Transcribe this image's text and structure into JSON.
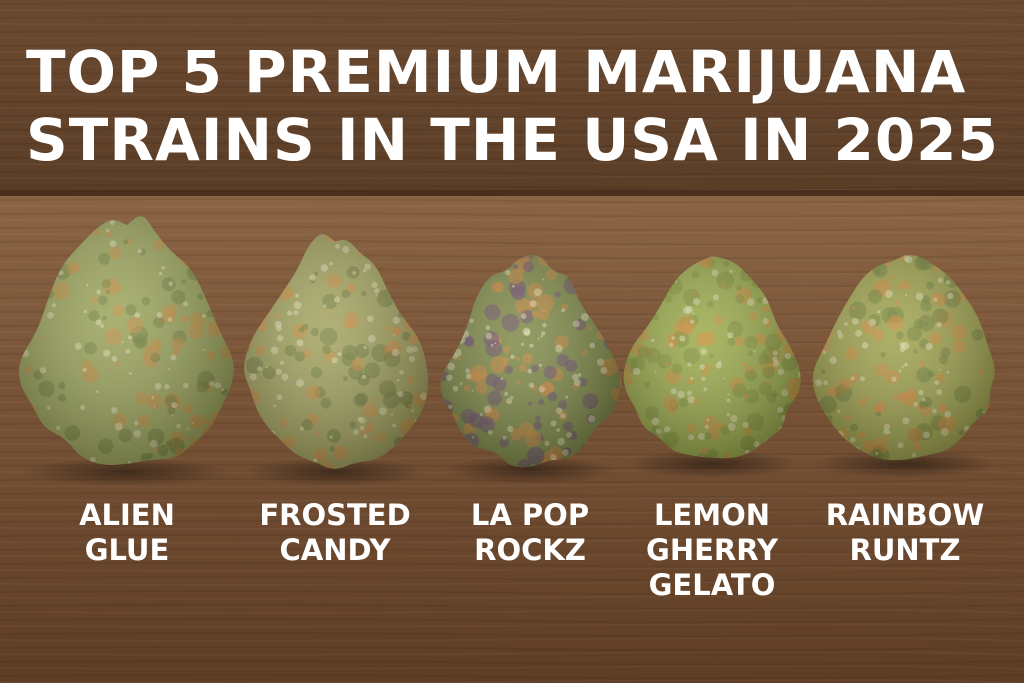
{
  "title_lines": [
    "TOP 5 PREMIUM MARIJUANA",
    "STRAINS IN THE USA IN 2025"
  ],
  "strains": [
    {
      "label_lines": [
        "ALIEN",
        "GLUE"
      ]
    },
    {
      "label_lines": [
        "FROSTED",
        "CANDY"
      ]
    },
    {
      "label_lines": [
        "LA POP",
        "ROCKZ"
      ]
    },
    {
      "label_lines": [
        "LEMON",
        "GHERRY",
        "GELATO"
      ]
    },
    {
      "label_lines": [
        "RAINBOW",
        "RUNTZ"
      ]
    }
  ]
}
